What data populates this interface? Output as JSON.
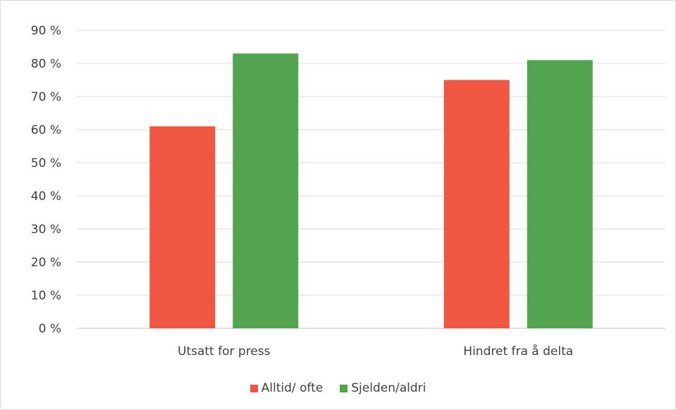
{
  "chart_data": {
    "type": "bar",
    "categories": [
      "Utsatt for press",
      "Hindret fra å delta"
    ],
    "series": [
      {
        "name": "Alltid/ ofte",
        "values": [
          61,
          75
        ],
        "color": "#f05742"
      },
      {
        "name": "Sjelden/aldri",
        "values": [
          83,
          81
        ],
        "color": "#52a44f"
      }
    ],
    "ylim": [
      0,
      90
    ],
    "yticks": [
      0,
      10,
      20,
      30,
      40,
      50,
      60,
      70,
      80,
      90
    ],
    "ytick_labels": [
      "0 %",
      "10 %",
      "20 %",
      "30 %",
      "40 %",
      "50 %",
      "60 %",
      "70 %",
      "80 %",
      "90 %"
    ],
    "grid": true,
    "legend_position": "bottom"
  }
}
